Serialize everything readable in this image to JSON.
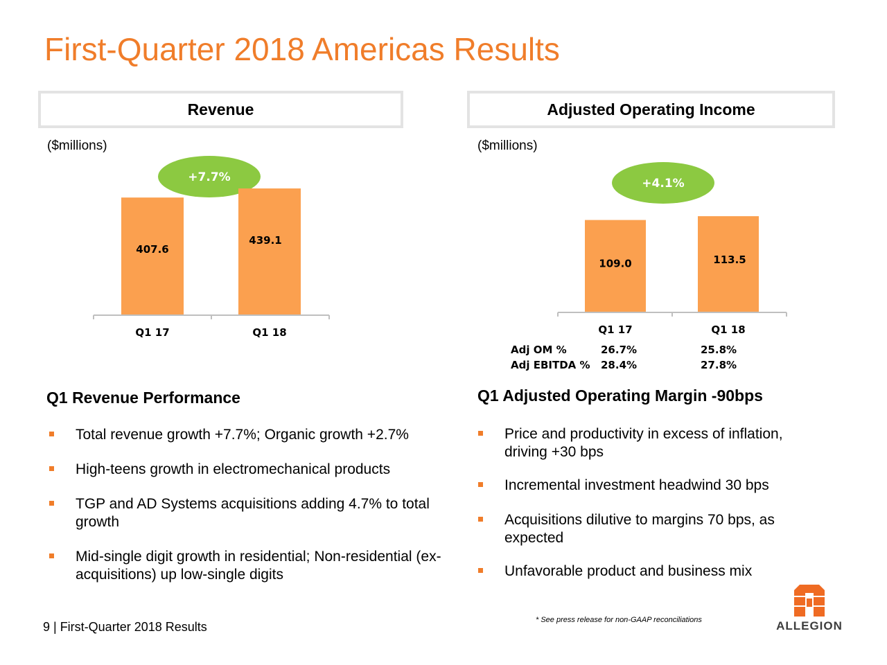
{
  "title": "First-Quarter 2018 Americas Results",
  "panels": {
    "revenue_header": "Revenue",
    "aoi_header": "Adjusted Operating Income",
    "units": "($millions)"
  },
  "colors": {
    "title": "#f07d2a",
    "bar": "#fba04f",
    "badge": "#8cc941",
    "bullet": "#f07d2a"
  },
  "chart_data": [
    {
      "type": "bar",
      "title": "Revenue",
      "ylabel": "($millions)",
      "categories": [
        "Q1 17",
        "Q1 18"
      ],
      "values": [
        407.6,
        439.1
      ],
      "value_labels": [
        "407.6",
        "439.1"
      ],
      "growth_label": "+7.7%",
      "ylim": [
        0,
        480
      ]
    },
    {
      "type": "bar",
      "title": "Adjusted Operating Income",
      "ylabel": "($millions)",
      "categories": [
        "Q1 17",
        "Q1 18"
      ],
      "values": [
        109.0,
        113.5
      ],
      "value_labels": [
        "109.0",
        "113.5"
      ],
      "growth_label": "+4.1%",
      "ylim": [
        0,
        134
      ]
    }
  ],
  "metrics": [
    {
      "label": "Adj OM %",
      "q1_17": "26.7%",
      "q1_18": "25.8%"
    },
    {
      "label": "Adj EBITDA %",
      "q1_17": "28.4%",
      "q1_18": "27.8%"
    }
  ],
  "revenue_section": {
    "title": "Q1 Revenue Performance",
    "bullets": [
      "Total revenue growth +7.7%; Organic growth +2.7%",
      "High-teens growth in electromechanical products",
      "TGP and AD Systems acquisitions adding 4.7% to total growth",
      "Mid-single digit growth in residential; Non-residential (ex-acquisitions) up low-single digits"
    ]
  },
  "margin_section": {
    "title": "Q1 Adjusted Operating Margin -90bps",
    "bullets": [
      "Price and productivity in excess of inflation, driving +30 bps",
      "Incremental investment headwind 30 bps",
      "Acquisitions dilutive to margins 70 bps, as expected",
      "Unfavorable product and business mix"
    ]
  },
  "footer": "9 | First-Quarter 2018 Results",
  "footnote": "* See press release for non-GAAP reconciliations",
  "logo": {
    "icon": "allegion-logo-icon",
    "text": "ALLEGION"
  }
}
